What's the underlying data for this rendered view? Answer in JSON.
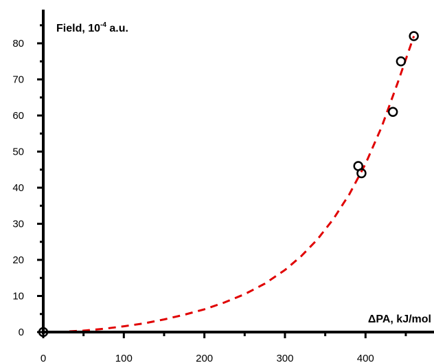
{
  "chart_data": {
    "type": "scatter",
    "title": "",
    "xlabel": "ΔPA, kJ/mol",
    "ylabel_main": "Field, 10",
    "ylabel_exp": "-4",
    "ylabel_unit": " a.u.",
    "xlim": [
      0,
      485
    ],
    "ylim": [
      0,
      85
    ],
    "x_ticks": [
      0,
      100,
      200,
      300,
      400
    ],
    "y_ticks": [
      0,
      10,
      20,
      30,
      40,
      50,
      60,
      70,
      80
    ],
    "grid": false,
    "colors": {
      "points": "#000000",
      "fit": "#e00000",
      "axes": "#000000"
    },
    "series": [
      {
        "kind": "points",
        "marker": "open-circle",
        "x": [
          0,
          391,
          395,
          434,
          444,
          460
        ],
        "y": [
          0,
          46,
          44,
          61,
          75,
          82
        ]
      },
      {
        "kind": "fit",
        "style": "dashed",
        "x": [
          0,
          25,
          50,
          75,
          100,
          125,
          150,
          175,
          200,
          225,
          250,
          275,
          300,
          320,
          340,
          360,
          380,
          400,
          420,
          440,
          460
        ],
        "y": [
          0,
          0.1,
          0.4,
          0.9,
          1.6,
          2.4,
          3.5,
          4.8,
          6.3,
          8.2,
          10.5,
          13.4,
          17.2,
          21.0,
          25.6,
          31.3,
          38.2,
          46.6,
          56.8,
          69.1,
          82.0
        ]
      }
    ]
  }
}
